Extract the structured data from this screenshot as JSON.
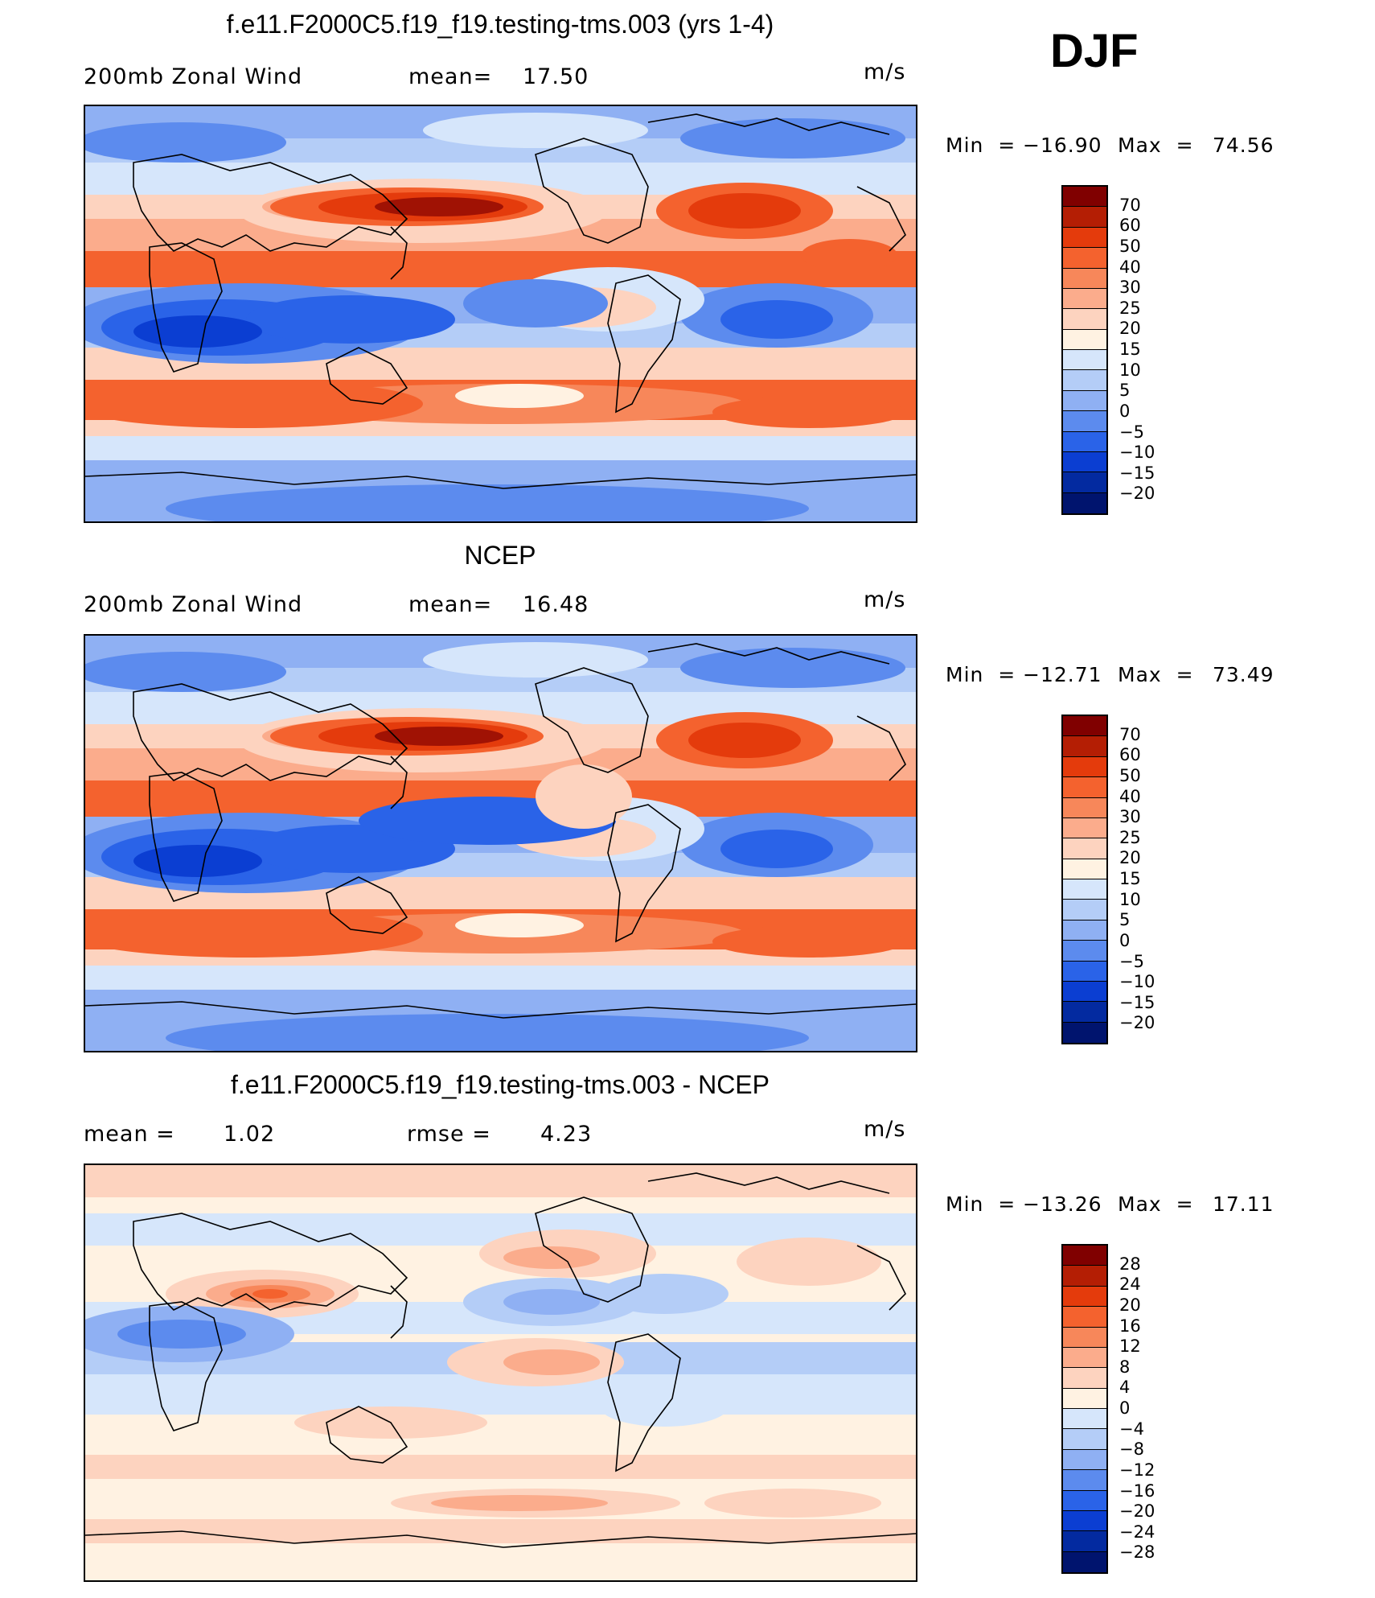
{
  "season_label": "DJF",
  "units": "m/s",
  "panels": [
    {
      "title": "f.e11.F2000C5.f19_f19.testing-tms.003 (yrs 1-4)",
      "field_label": "200mb Zonal Wind",
      "stat_label": "mean=",
      "stat_value": "17.50",
      "min_label": "Min  =",
      "min_value": "−16.90",
      "max_label": "Max  =",
      "max_value": "74.56",
      "colorbar_labels": [
        "70",
        "60",
        "50",
        "40",
        "30",
        "25",
        "20",
        "15",
        "10",
        "5",
        "0",
        "−5",
        "−10",
        "−15",
        "−20"
      ],
      "colorbar_colors": [
        "#800000",
        "#b41e04",
        "#e43b0c",
        "#f4622e",
        "#f7875a",
        "#fbac8c",
        "#fdd3bf",
        "#fff2e2",
        "#d6e6fb",
        "#b4cdf7",
        "#8fb0f3",
        "#5c8bee",
        "#2a63e8",
        "#0b3ed2",
        "#032aa0",
        "#00146e"
      ]
    },
    {
      "title": "NCEP",
      "field_label": "200mb Zonal Wind",
      "stat_label": "mean=",
      "stat_value": "16.48",
      "min_label": "Min  =",
      "min_value": "−12.71",
      "max_label": "Max  =",
      "max_value": "73.49",
      "colorbar_labels": [
        "70",
        "60",
        "50",
        "40",
        "30",
        "25",
        "20",
        "15",
        "10",
        "5",
        "0",
        "−5",
        "−10",
        "−15",
        "−20"
      ],
      "colorbar_colors": [
        "#800000",
        "#b41e04",
        "#e43b0c",
        "#f4622e",
        "#f7875a",
        "#fbac8c",
        "#fdd3bf",
        "#fff2e2",
        "#d6e6fb",
        "#b4cdf7",
        "#8fb0f3",
        "#5c8bee",
        "#2a63e8",
        "#0b3ed2",
        "#032aa0",
        "#00146e"
      ]
    },
    {
      "title": "f.e11.F2000C5.f19_f19.testing-tms.003 - NCEP",
      "field_label": "mean =",
      "field_value": "1.02",
      "stat_label": "rmse =",
      "stat_value": "4.23",
      "min_label": "Min  =",
      "min_value": "−13.26",
      "max_label": "Max  =",
      "max_value": "17.11",
      "colorbar_labels": [
        "28",
        "24",
        "20",
        "16",
        "12",
        "8",
        "4",
        "0",
        "−4",
        "−8",
        "−12",
        "−16",
        "−20",
        "−24",
        "−28"
      ],
      "colorbar_colors": [
        "#800000",
        "#b41e04",
        "#e43b0c",
        "#f4622e",
        "#f7875a",
        "#fbac8c",
        "#fdd3bf",
        "#fff2e2",
        "#d6e6fb",
        "#b4cdf7",
        "#8fb0f3",
        "#5c8bee",
        "#2a63e8",
        "#0b3ed2",
        "#032aa0",
        "#00146e"
      ]
    }
  ]
}
